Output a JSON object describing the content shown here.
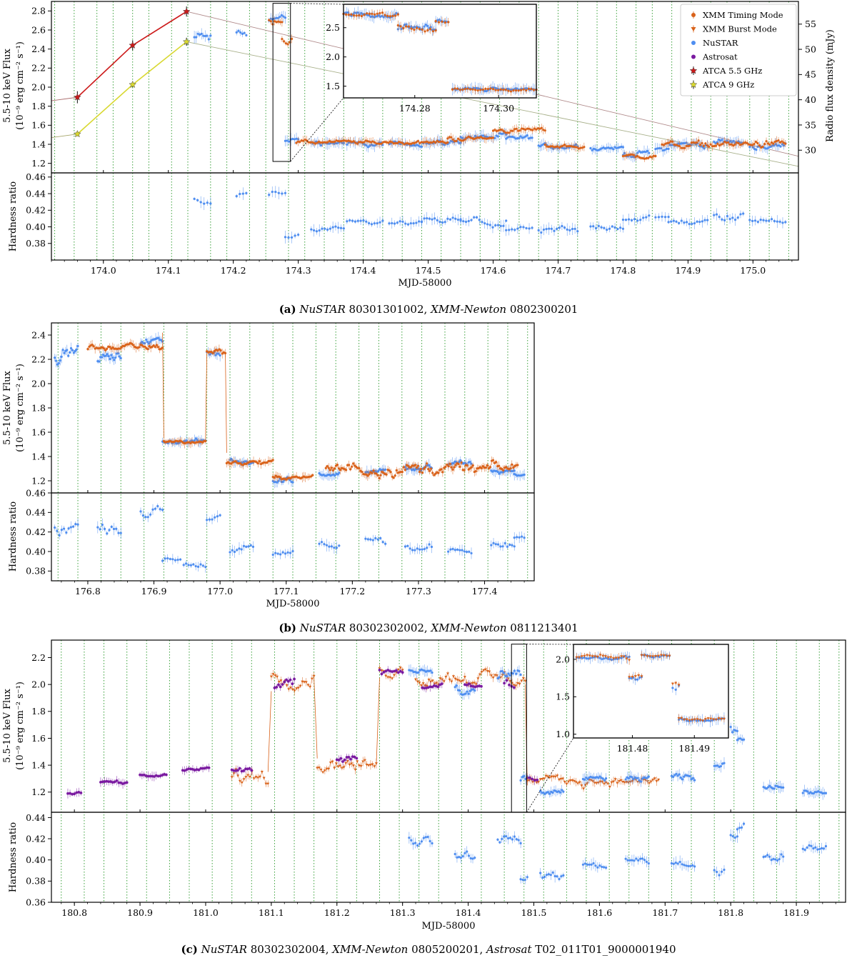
{
  "colors": {
    "xmm_timing": "#d9621a",
    "xmm_burst": "#d9621a",
    "nustar": "#4f8ef0",
    "astrosat": "#7a1aa0",
    "atca55": "#cc1a1a",
    "atca9": "#d8d830",
    "gti": "#3aa03a"
  },
  "chart_data": [
    {
      "id": "a",
      "type": "scatter",
      "caption_label": "(a)",
      "caption_parts": [
        "NuSTAR",
        " 80301301002, ",
        "XMM-Newton",
        " 0802300201"
      ],
      "xlabel": "MJD-58000",
      "xlim": [
        173.92,
        175.07
      ],
      "xticks": [
        174.0,
        174.1,
        174.2,
        174.3,
        174.4,
        174.5,
        174.6,
        174.7,
        174.8,
        174.9,
        175.0
      ],
      "xtick_labels": [
        "174.0",
        "174.1",
        "174.2",
        "174.3",
        "174.4",
        "174.5",
        "174.6",
        "174.7",
        "174.8",
        "174.9",
        "175.0"
      ],
      "flux_ylabel_1": "5.5-10 keV Flux",
      "flux_ylabel_2": "(10⁻⁹ erg cm⁻² s⁻¹)",
      "flux_ylim": [
        1.1,
        2.9
      ],
      "flux_yticks": [
        1.2,
        1.4,
        1.6,
        1.8,
        2.0,
        2.2,
        2.4,
        2.6,
        2.8
      ],
      "flux_ytick_labels": [
        "1.2",
        "1.4",
        "1.6",
        "1.8",
        "2.0",
        "2.2",
        "2.4",
        "2.6",
        "2.8"
      ],
      "radio_ylabel": "Radio flux density (mJy)",
      "radio_ylim": [
        25.5,
        59.5
      ],
      "radio_yticks": [
        30,
        35,
        40,
        45,
        50,
        55
      ],
      "radio_ytick_labels": [
        "30",
        "35",
        "40",
        "45",
        "50",
        "55"
      ],
      "hr_ylabel": "Hardness ratio",
      "hr_ylim": [
        0.36,
        0.465
      ],
      "hr_yticks": [
        0.38,
        0.4,
        0.42,
        0.44,
        0.46
      ],
      "hr_ytick_labels": [
        "0.38",
        "0.40",
        "0.42",
        "0.44",
        "0.46"
      ],
      "gti_lines": [
        173.925,
        173.955,
        173.99,
        174.015,
        174.045,
        174.07,
        174.105,
        174.13,
        174.165,
        174.19,
        174.225,
        174.25,
        174.285,
        174.31,
        174.34,
        174.37,
        174.4,
        174.43,
        174.46,
        174.49,
        174.52,
        174.55,
        174.58,
        174.61,
        174.64,
        174.67,
        174.7,
        174.73,
        174.76,
        174.79,
        174.82,
        174.845,
        174.875,
        174.905,
        174.935,
        174.96,
        174.995,
        175.025,
        175.055
      ],
      "atca_55": {
        "x": [
          173.96,
          174.045,
          174.128
        ],
        "y": [
          40.5,
          50.8,
          57.5
        ],
        "err": [
          1.2,
          1.0,
          1.0
        ]
      },
      "atca_9": {
        "x": [
          173.96,
          174.045,
          174.128
        ],
        "y": [
          33.2,
          43.0,
          51.5
        ],
        "err": [
          0.4,
          0.5,
          0.8
        ]
      },
      "fit_55": {
        "x": [
          173.92,
          175.07
        ],
        "y": [
          39.8,
          27.8
        ]
      },
      "fit_9": {
        "x": [
          173.92,
          175.07
        ],
        "y": [
          32.5,
          26.2
        ]
      },
      "fit_55_upper": {
        "x": [
          174.128,
          175.07
        ],
        "y": [
          57.5,
          28.8
        ]
      },
      "fit_9_upper": {
        "x": [
          174.128,
          175.07
        ],
        "y": [
          51.5,
          26.8
        ]
      },
      "nustar_segments": [
        {
          "x0": 174.14,
          "x1": 174.165,
          "f": 2.52,
          "amp": 0.12,
          "hr": 0.43,
          "hramp": 0.015
        },
        {
          "x0": 174.205,
          "x1": 174.22,
          "f": 2.55,
          "amp": 0.1,
          "hr": 0.438,
          "hramp": 0.008
        },
        {
          "x0": 174.255,
          "x1": 174.28,
          "f": 2.72,
          "amp": 0.1,
          "hr": 0.44,
          "hramp": 0.01
        },
        {
          "x0": 174.28,
          "x1": 174.3,
          "f": 1.45,
          "amp": 0.05,
          "hr": 0.39,
          "hramp": 0.012
        },
        {
          "x0": 174.32,
          "x1": 174.37,
          "f": 1.42,
          "amp": 0.05,
          "hr": 0.395,
          "hramp": 0.006
        },
        {
          "x0": 174.375,
          "x1": 174.43,
          "f": 1.4,
          "amp": 0.05,
          "hr": 0.405,
          "hramp": 0.006
        },
        {
          "x0": 174.44,
          "x1": 174.49,
          "f": 1.4,
          "amp": 0.04,
          "hr": 0.404,
          "hramp": 0.006
        },
        {
          "x0": 174.49,
          "x1": 174.55,
          "f": 1.42,
          "amp": 0.05,
          "hr": 0.408,
          "hramp": 0.008
        },
        {
          "x0": 174.55,
          "x1": 174.62,
          "f": 1.48,
          "amp": 0.06,
          "hr": 0.405,
          "hramp": 0.01
        },
        {
          "x0": 174.62,
          "x1": 174.66,
          "f": 1.46,
          "amp": 0.05,
          "hr": 0.396,
          "hramp": 0.006
        },
        {
          "x0": 174.67,
          "x1": 174.73,
          "f": 1.38,
          "amp": 0.05,
          "hr": 0.395,
          "hramp": 0.01
        },
        {
          "x0": 174.75,
          "x1": 174.8,
          "f": 1.36,
          "amp": 0.04,
          "hr": 0.4,
          "hramp": 0.008
        },
        {
          "x0": 174.8,
          "x1": 174.84,
          "f": 1.3,
          "amp": 0.06,
          "hr": 0.41,
          "hramp": 0.006
        },
        {
          "x0": 174.85,
          "x1": 174.87,
          "f": 1.36,
          "amp": 0.05,
          "hr": 0.412,
          "hramp": 0.005
        },
        {
          "x0": 174.87,
          "x1": 174.93,
          "f": 1.4,
          "amp": 0.06,
          "hr": 0.405,
          "hramp": 0.008
        },
        {
          "x0": 174.94,
          "x1": 174.985,
          "f": 1.42,
          "amp": 0.05,
          "hr": 0.412,
          "hramp": 0.01
        },
        {
          "x0": 174.995,
          "x1": 175.05,
          "f": 1.38,
          "amp": 0.06,
          "hr": 0.41,
          "hramp": 0.01
        }
      ],
      "xmm_segments": [
        {
          "x0": 174.255,
          "x1": 174.275,
          "f": 2.72,
          "amp": 0.08
        },
        {
          "x0": 174.275,
          "x1": 174.29,
          "f": 2.5,
          "amp": 0.12
        },
        {
          "x0": 174.297,
          "x1": 174.53,
          "f": 1.42,
          "amp": 0.04
        },
        {
          "x0": 174.53,
          "x1": 174.6,
          "f": 1.46,
          "amp": 0.05
        },
        {
          "x0": 174.6,
          "x1": 174.68,
          "f": 1.55,
          "amp": 0.05
        },
        {
          "x0": 174.68,
          "x1": 174.74,
          "f": 1.38,
          "amp": 0.04
        },
        {
          "x0": 174.8,
          "x1": 174.85,
          "f": 1.27,
          "amp": 0.05
        },
        {
          "x0": 174.86,
          "x1": 175.05,
          "f": 1.4,
          "amp": 0.07
        }
      ],
      "inset": {
        "xlim": [
          174.263,
          174.309
        ],
        "ylim": [
          1.3,
          2.9
        ],
        "xticks": [
          174.28,
          174.3
        ],
        "xtick_labels": [
          "174.28",
          "174.30"
        ],
        "yticks": [
          1.5,
          2.0,
          2.5
        ],
        "ytick_labels": [
          "1.5",
          "2.0",
          "2.5"
        ],
        "box_x": [
          174.261,
          174.288
        ],
        "box_y": [
          1.22,
          2.88
        ]
      },
      "legend": {
        "placement": "top-right",
        "entries": [
          "XMM Timing Mode",
          "XMM Burst Mode",
          "NuSTAR",
          "Astrosat",
          "ATCA 5.5 GHz",
          "ATCA 9 GHz"
        ]
      }
    },
    {
      "id": "b",
      "type": "scatter",
      "caption_label": "(b)",
      "caption_parts": [
        "NuSTAR",
        " 80302302002, ",
        "XMM-Newton",
        " 0811213401"
      ],
      "xlabel": "MJD-58000",
      "xlim": [
        176.745,
        177.475
      ],
      "xticks": [
        176.8,
        176.9,
        177.0,
        177.1,
        177.2,
        177.3,
        177.4
      ],
      "xtick_labels": [
        "176.8",
        "176.9",
        "177.0",
        "177.1",
        "177.2",
        "177.3",
        "177.4"
      ],
      "flux_ylabel_1": "5.5-10 keV Flux",
      "flux_ylabel_2": "(10⁻⁹ erg cm⁻² s⁻¹)",
      "flux_ylim": [
        1.1,
        2.5
      ],
      "flux_yticks": [
        1.2,
        1.4,
        1.6,
        1.8,
        2.0,
        2.2,
        2.4
      ],
      "flux_ytick_labels": [
        "1.2",
        "1.4",
        "1.6",
        "1.8",
        "2.0",
        "2.2",
        "2.4"
      ],
      "hr_ylabel": "Hardness ratio",
      "hr_ylim": [
        0.37,
        0.46
      ],
      "hr_yticks": [
        0.38,
        0.4,
        0.42,
        0.44,
        0.46
      ],
      "hr_ytick_labels": [
        "0.38",
        "0.40",
        "0.42",
        "0.44",
        "0.46"
      ],
      "gti_lines": [
        176.755,
        176.785,
        176.82,
        176.85,
        176.885,
        176.915,
        176.95,
        176.98,
        177.015,
        177.045,
        177.08,
        177.11,
        177.145,
        177.175,
        177.21,
        177.24,
        177.275,
        177.305,
        177.34,
        177.37,
        177.405,
        177.435,
        177.465
      ],
      "nustar_segments": [
        {
          "x0": 176.75,
          "x1": 176.785,
          "f": 2.25,
          "amp": 0.1,
          "hr": 0.425,
          "hramp": 0.012
        },
        {
          "x0": 176.815,
          "x1": 176.85,
          "f": 2.22,
          "amp": 0.08,
          "hr": 0.425,
          "hramp": 0.012
        },
        {
          "x0": 176.88,
          "x1": 176.913,
          "f": 2.35,
          "amp": 0.06,
          "hr": 0.44,
          "hramp": 0.01
        },
        {
          "x0": 176.913,
          "x1": 176.94,
          "f": 1.52,
          "amp": 0.04,
          "hr": 0.392,
          "hramp": 0.006
        },
        {
          "x0": 176.945,
          "x1": 176.978,
          "f": 1.52,
          "amp": 0.04,
          "hr": 0.386,
          "hramp": 0.008
        },
        {
          "x0": 176.98,
          "x1": 177.0,
          "f": 2.25,
          "amp": 0.07,
          "hr": 0.435,
          "hramp": 0.008
        },
        {
          "x0": 177.015,
          "x1": 177.05,
          "f": 1.36,
          "amp": 0.04,
          "hr": 0.4,
          "hramp": 0.01
        },
        {
          "x0": 177.08,
          "x1": 177.11,
          "f": 1.2,
          "amp": 0.05,
          "hr": 0.398,
          "hramp": 0.01
        },
        {
          "x0": 177.15,
          "x1": 177.18,
          "f": 1.26,
          "amp": 0.04,
          "hr": 0.408,
          "hramp": 0.01
        },
        {
          "x0": 177.22,
          "x1": 177.25,
          "f": 1.28,
          "amp": 0.05,
          "hr": 0.412,
          "hramp": 0.01
        },
        {
          "x0": 177.28,
          "x1": 177.32,
          "f": 1.3,
          "amp": 0.05,
          "hr": 0.404,
          "hramp": 0.008
        },
        {
          "x0": 177.345,
          "x1": 177.38,
          "f": 1.34,
          "amp": 0.05,
          "hr": 0.4,
          "hramp": 0.008
        },
        {
          "x0": 177.41,
          "x1": 177.445,
          "f": 1.28,
          "amp": 0.04,
          "hr": 0.404,
          "hramp": 0.008
        },
        {
          "x0": 177.445,
          "x1": 177.46,
          "f": 1.25,
          "amp": 0.03,
          "hr": 0.414,
          "hramp": 0.004
        }
      ],
      "xmm_segments": [
        {
          "x0": 176.8,
          "x1": 176.913,
          "f": 2.3,
          "amp": 0.05
        },
        {
          "x0": 176.915,
          "x1": 176.978,
          "f": 1.52,
          "amp": 0.03
        },
        {
          "x0": 176.98,
          "x1": 177.008,
          "f": 2.27,
          "amp": 0.05
        },
        {
          "x0": 177.01,
          "x1": 177.08,
          "f": 1.35,
          "amp": 0.04
        },
        {
          "x0": 177.08,
          "x1": 177.14,
          "f": 1.23,
          "amp": 0.03
        },
        {
          "x0": 177.16,
          "x1": 177.45,
          "f": 1.3,
          "amp": 0.1
        }
      ]
    },
    {
      "id": "c",
      "type": "scatter",
      "caption_label": "(c)",
      "caption_parts": [
        "NuSTAR",
        " 80302302004, ",
        "XMM-Newton",
        " 0805200201, ",
        "Astrosat",
        " T02_011T01_9000001940"
      ],
      "xlabel": "MJD-58000",
      "xlim": [
        180.765,
        181.975
      ],
      "xticks": [
        180.8,
        180.9,
        181.0,
        181.1,
        181.2,
        181.3,
        181.4,
        181.5,
        181.6,
        181.7,
        181.8,
        181.9
      ],
      "xtick_labels": [
        "180.8",
        "180.9",
        "181.0",
        "181.1",
        "181.2",
        "181.3",
        "181.4",
        "181.5",
        "181.6",
        "181.7",
        "181.8",
        "181.9"
      ],
      "flux_ylabel_1": "5.5-10 keV Flux",
      "flux_ylabel_2": "(10⁻⁹ erg cm⁻² s⁻¹)",
      "flux_ylim": [
        1.05,
        2.33
      ],
      "flux_yticks": [
        1.2,
        1.4,
        1.6,
        1.8,
        2.0,
        2.2
      ],
      "flux_ytick_labels": [
        "1.2",
        "1.4",
        "1.6",
        "1.8",
        "2.0",
        "2.2"
      ],
      "hr_ylabel": "Hardness ratio",
      "hr_ylim": [
        0.36,
        0.445
      ],
      "hr_yticks": [
        0.36,
        0.38,
        0.4,
        0.42,
        0.44
      ],
      "hr_ytick_labels": [
        "0.36",
        "0.38",
        "0.40",
        "0.42",
        "0.44"
      ],
      "gti_lines": [
        180.78,
        180.815,
        180.845,
        180.88,
        180.91,
        180.945,
        180.975,
        181.01,
        181.04,
        181.07,
        181.105,
        181.135,
        181.165,
        181.2,
        181.23,
        181.265,
        181.295,
        181.325,
        181.355,
        181.39,
        181.42,
        181.455,
        181.485,
        181.515,
        181.55,
        181.58,
        181.615,
        181.645,
        181.675,
        181.71,
        181.74,
        181.775,
        181.805,
        181.835,
        181.87,
        181.9,
        181.935,
        181.965
      ],
      "astrosat_segments": [
        {
          "x0": 180.79,
          "x1": 180.81,
          "f": 1.2,
          "amp": 0.04
        },
        {
          "x0": 180.84,
          "x1": 180.88,
          "f": 1.27,
          "amp": 0.03
        },
        {
          "x0": 180.9,
          "x1": 180.94,
          "f": 1.32,
          "amp": 0.03
        },
        {
          "x0": 180.965,
          "x1": 181.005,
          "f": 1.37,
          "amp": 0.03
        },
        {
          "x0": 181.04,
          "x1": 181.07,
          "f": 1.36,
          "amp": 0.05
        },
        {
          "x0": 181.105,
          "x1": 181.135,
          "f": 2.0,
          "amp": 0.08
        },
        {
          "x0": 181.2,
          "x1": 181.23,
          "f": 1.44,
          "amp": 0.05
        },
        {
          "x0": 181.265,
          "x1": 181.3,
          "f": 2.1,
          "amp": 0.05
        },
        {
          "x0": 181.33,
          "x1": 181.36,
          "f": 1.98,
          "amp": 0.05
        },
        {
          "x0": 181.395,
          "x1": 181.42,
          "f": 2.0,
          "amp": 0.05
        },
        {
          "x0": 181.455,
          "x1": 181.47,
          "f": 2.0,
          "amp": 0.05
        },
        {
          "x0": 181.49,
          "x1": 181.505,
          "f": 1.3,
          "amp": 0.03
        }
      ],
      "xmm_segments": [
        {
          "x0": 181.04,
          "x1": 181.095,
          "f": 1.32,
          "amp": 0.12
        },
        {
          "x0": 181.1,
          "x1": 181.165,
          "f": 2.05,
          "amp": 0.12
        },
        {
          "x0": 181.17,
          "x1": 181.26,
          "f": 1.4,
          "amp": 0.1
        },
        {
          "x0": 181.265,
          "x1": 181.3,
          "f": 2.1,
          "amp": 0.1
        },
        {
          "x0": 181.32,
          "x1": 181.487,
          "f": 2.05,
          "amp": 0.1
        },
        {
          "x0": 181.49,
          "x1": 181.69,
          "f": 1.28,
          "amp": 0.06
        }
      ],
      "nustar_segments": [
        {
          "x0": 181.31,
          "x1": 181.345,
          "f": 2.1,
          "amp": 0.06,
          "hr": 0.42,
          "hramp": 0.01
        },
        {
          "x0": 181.38,
          "x1": 181.41,
          "f": 1.95,
          "amp": 0.1,
          "hr": 0.405,
          "hramp": 0.01
        },
        {
          "x0": 181.445,
          "x1": 181.48,
          "f": 2.05,
          "amp": 0.08,
          "hr": 0.42,
          "hramp": 0.01
        },
        {
          "x0": 181.48,
          "x1": 181.49,
          "f": 1.3,
          "amp": 0.08,
          "hr": 0.38,
          "hramp": 0.006
        },
        {
          "x0": 181.51,
          "x1": 181.545,
          "f": 1.2,
          "amp": 0.06,
          "hr": 0.385,
          "hramp": 0.01
        },
        {
          "x0": 181.575,
          "x1": 181.61,
          "f": 1.3,
          "amp": 0.05,
          "hr": 0.395,
          "hramp": 0.006
        },
        {
          "x0": 181.64,
          "x1": 181.675,
          "f": 1.3,
          "amp": 0.05,
          "hr": 0.4,
          "hramp": 0.006
        },
        {
          "x0": 181.71,
          "x1": 181.745,
          "f": 1.3,
          "amp": 0.05,
          "hr": 0.396,
          "hramp": 0.008
        },
        {
          "x0": 181.775,
          "x1": 181.79,
          "f": 1.4,
          "amp": 0.04,
          "hr": 0.39,
          "hramp": 0.008
        },
        {
          "x0": 181.8,
          "x1": 181.81,
          "f": 1.7,
          "amp": 0.1,
          "hr": 0.425,
          "hramp": 0.01
        },
        {
          "x0": 181.81,
          "x1": 181.82,
          "f": 1.6,
          "amp": 0.05,
          "hr": 0.43,
          "hramp": 0.008
        },
        {
          "x0": 181.85,
          "x1": 181.88,
          "f": 1.25,
          "amp": 0.05,
          "hr": 0.403,
          "hramp": 0.008
        },
        {
          "x0": 181.91,
          "x1": 181.945,
          "f": 1.2,
          "amp": 0.03,
          "hr": 0.41,
          "hramp": 0.008
        }
      ],
      "inset": {
        "xlim": [
          181.4705,
          181.4955
        ],
        "ylim": [
          0.95,
          2.2
        ],
        "xticks": [
          181.48,
          181.49
        ],
        "xtick_labels": [
          "181.48",
          "181.49"
        ],
        "yticks": [
          1.0,
          1.5,
          2.0
        ],
        "ytick_labels": [
          "1.0",
          "1.5",
          "2.0"
        ],
        "box_x": [
          181.466,
          181.489
        ],
        "box_y": [
          1.05,
          2.3
        ]
      }
    }
  ]
}
